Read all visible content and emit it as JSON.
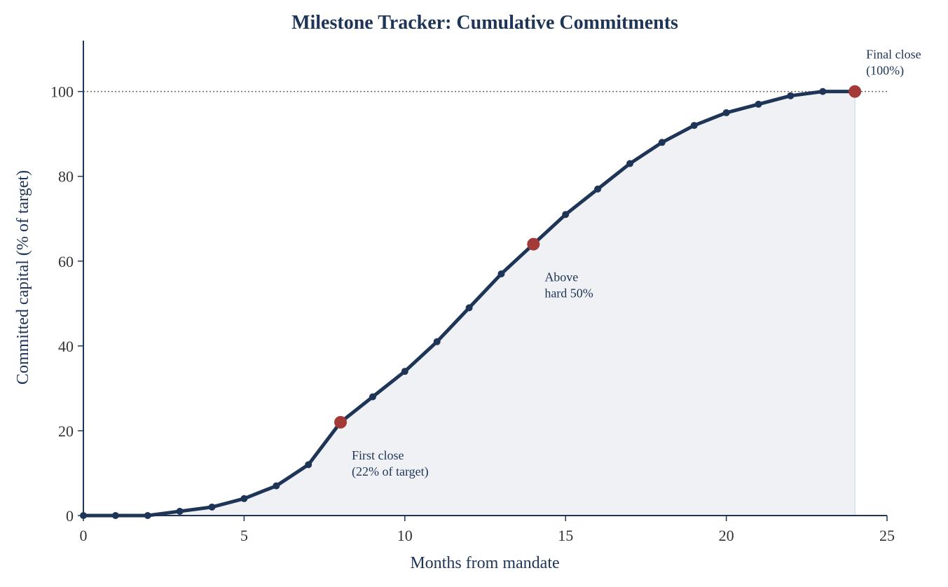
{
  "chart_data": {
    "type": "line",
    "title": "Milestone Tracker: Cumulative Commitments",
    "xlabel": "Months from mandate",
    "ylabel": "Committed capital (% of target)",
    "xlim": [
      0,
      25
    ],
    "ylim": [
      0,
      112
    ],
    "xticks": [
      0,
      5,
      10,
      15,
      20,
      25
    ],
    "yticks": [
      0,
      20,
      40,
      60,
      80,
      100
    ],
    "grid": false,
    "reference_line": {
      "y": 100,
      "style": "dotted"
    },
    "series": [
      {
        "x": [
          0,
          1,
          2,
          3,
          4,
          5,
          6,
          7,
          8,
          9,
          10,
          11,
          12,
          13,
          14,
          15,
          16,
          17,
          18,
          19,
          20,
          21,
          22,
          23,
          24
        ],
        "y": [
          0,
          0,
          0,
          1,
          2,
          4,
          7,
          12,
          22,
          28,
          34,
          41,
          49,
          57,
          64,
          71,
          77,
          83,
          88,
          92,
          95,
          97,
          99,
          100,
          100
        ],
        "fill": true
      }
    ],
    "milestones": [
      {
        "x": 8,
        "y": 22,
        "label_lines": [
          "First close",
          "(22% of target)"
        ]
      },
      {
        "x": 14,
        "y": 64,
        "label_lines": [
          "Above",
          "hard 50%"
        ]
      },
      {
        "x": 24,
        "y": 100,
        "label_lines": [
          "Final close",
          "(100%)"
        ]
      }
    ],
    "colors": {
      "line": "#1e3557",
      "milestone": "#a33a38",
      "fill": "#eff1f4",
      "axis": "#1e3557",
      "reference": "#666666"
    }
  }
}
